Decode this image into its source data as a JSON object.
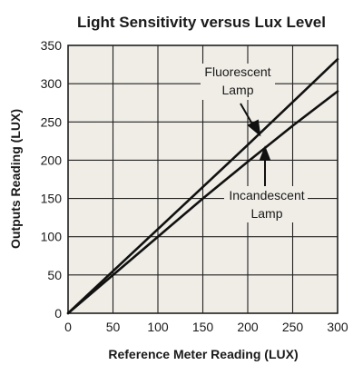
{
  "chart_data": {
    "type": "line",
    "title": "Light Sensitivity versus Lux Level",
    "xlabel": "Reference Meter Reading (LUX)",
    "ylabel": "Outputs Reading (LUX)",
    "xlim": [
      0,
      300
    ],
    "ylim": [
      0,
      350
    ],
    "xticks": [
      "0",
      "50",
      "100",
      "150",
      "200",
      "250",
      "300"
    ],
    "yticks": [
      "0",
      "50",
      "100",
      "150",
      "200",
      "250",
      "300",
      "350"
    ],
    "grid": true,
    "background_color": "#efede5",
    "line_color": "#111111",
    "series": [
      {
        "name": "Fluorescent Lamp",
        "x": [
          0,
          50,
          100,
          150,
          200,
          250,
          300
        ],
        "y": [
          0,
          55,
          110,
          165,
          220,
          276,
          332
        ]
      },
      {
        "name": "Incandescent Lamp",
        "x": [
          0,
          50,
          100,
          150,
          200,
          250,
          300
        ],
        "y": [
          0,
          50,
          100,
          150,
          198,
          245,
          290
        ]
      }
    ],
    "annotations": [
      {
        "lines": [
          "Fluorescent",
          "Lamp"
        ],
        "series": "Fluorescent Lamp"
      },
      {
        "lines": [
          "Incandescent",
          "Lamp"
        ],
        "series": "Incandescent Lamp"
      }
    ]
  }
}
